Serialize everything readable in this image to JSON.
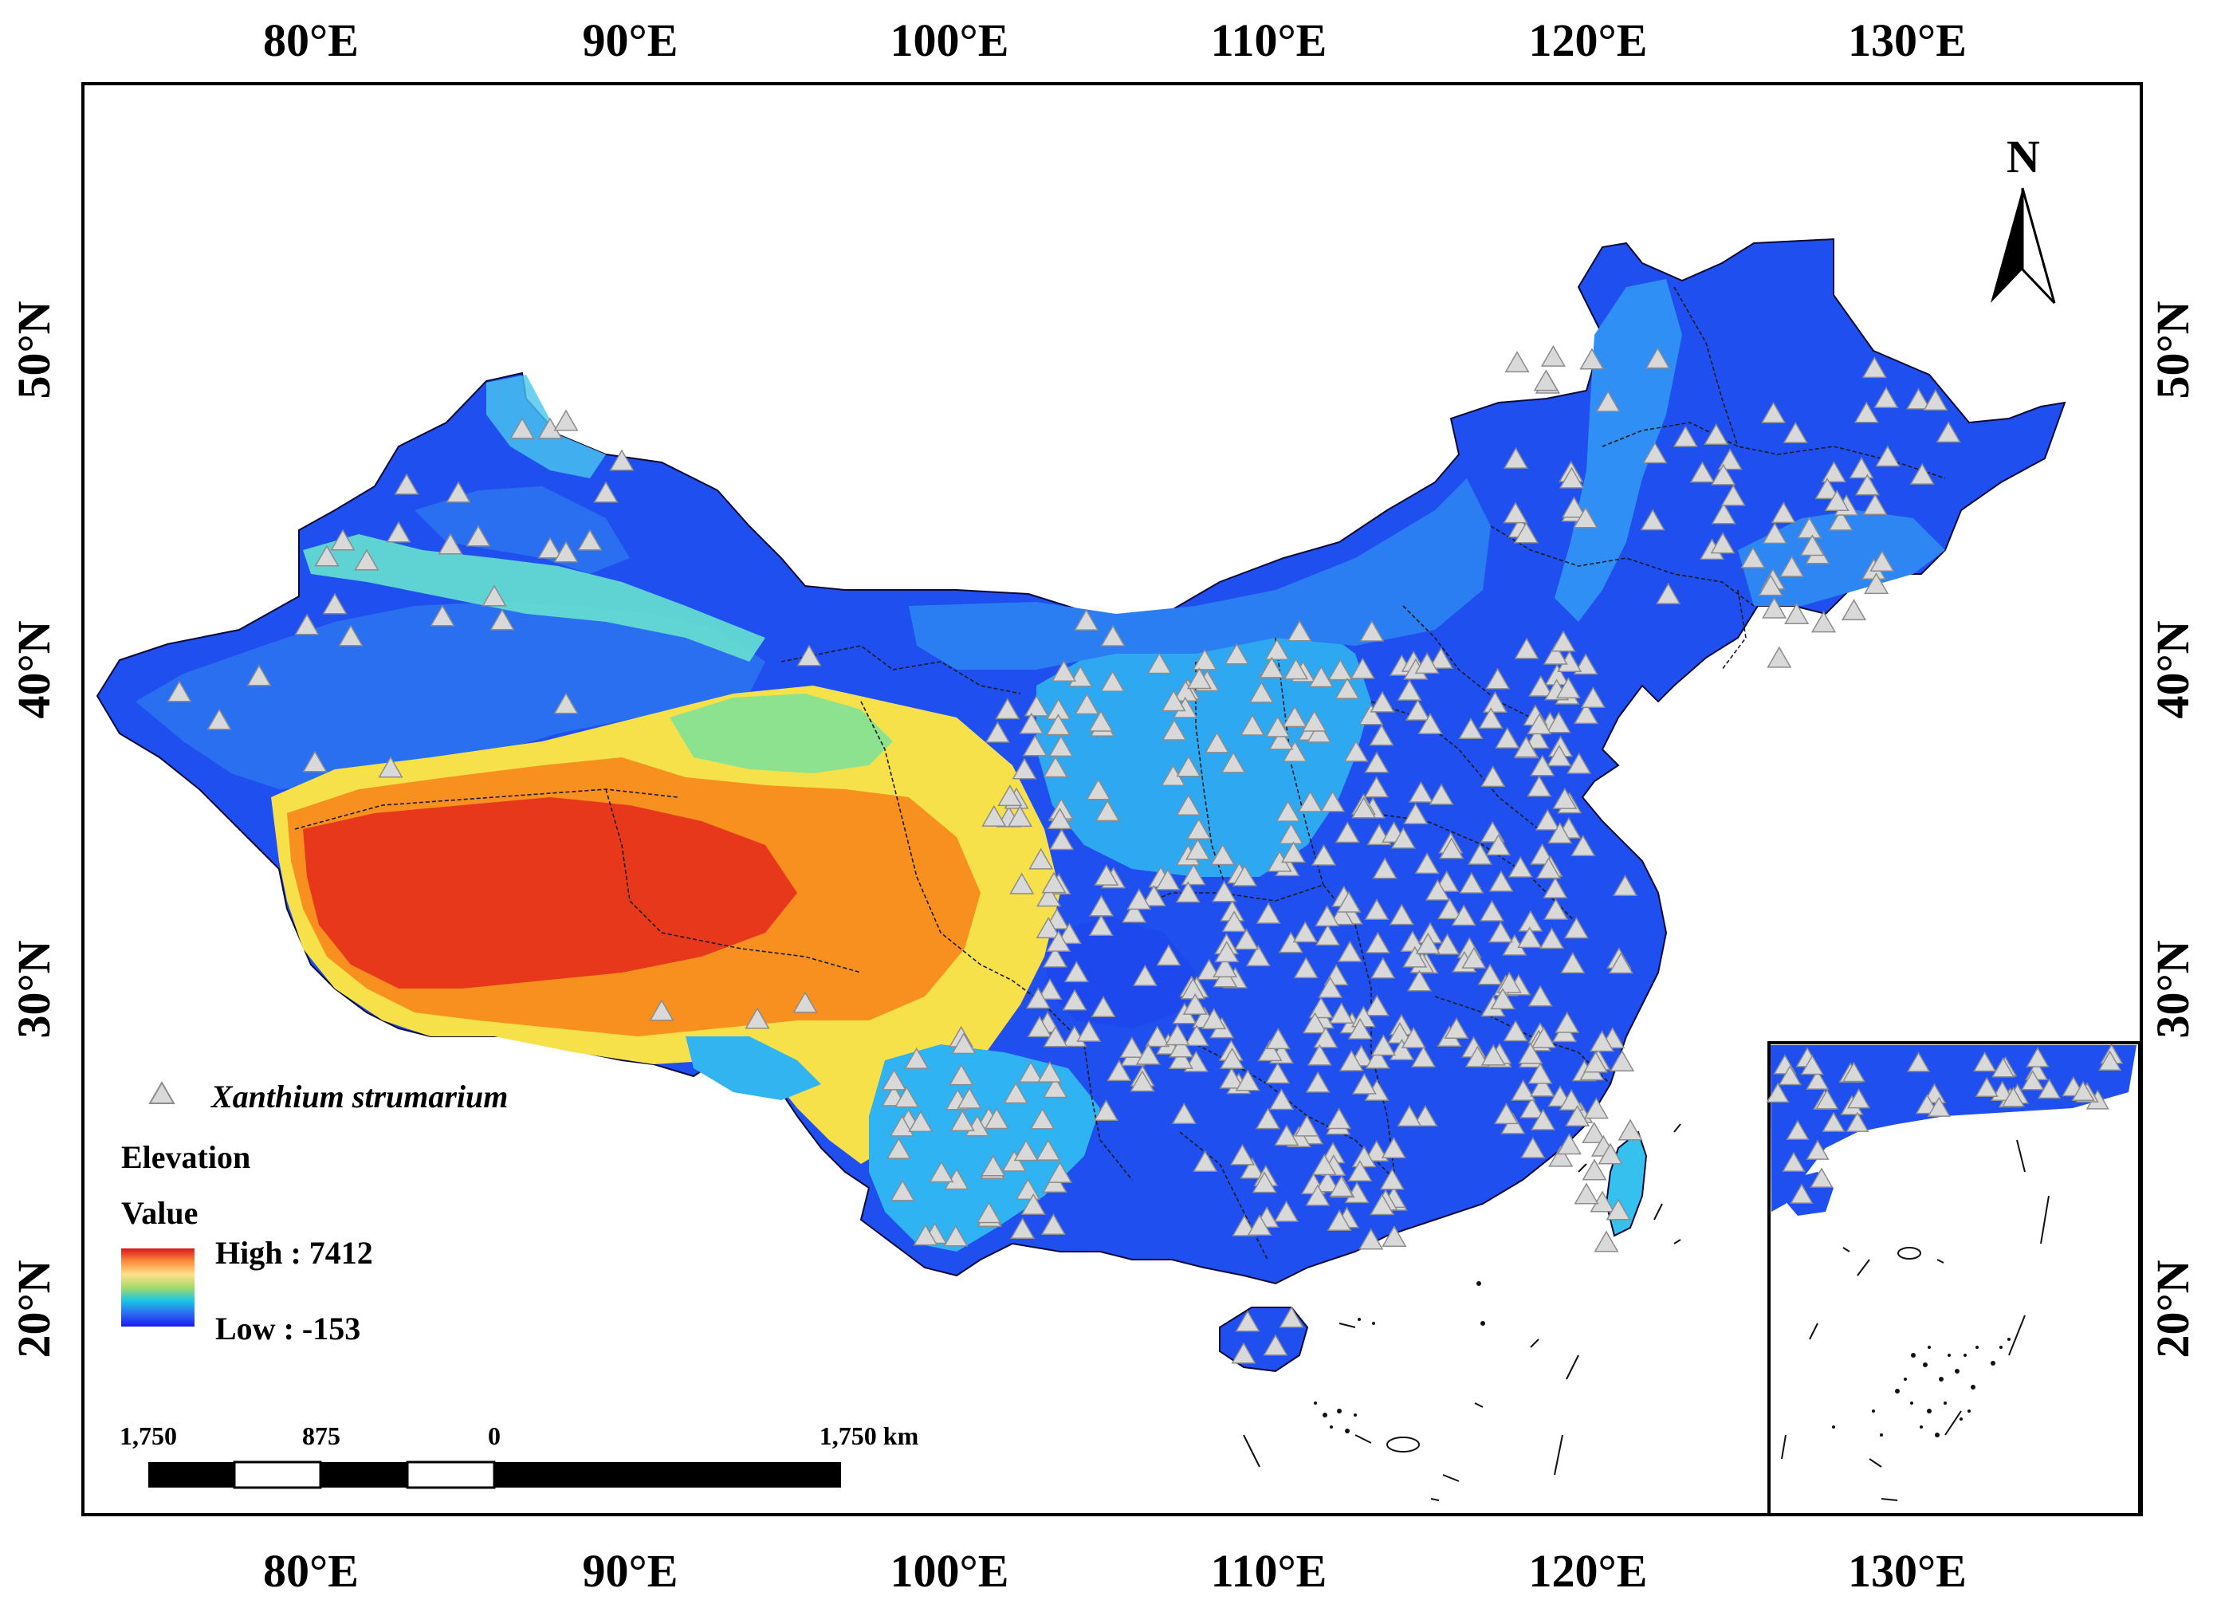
{
  "map": {
    "lon_ticks": [
      {
        "value": 80,
        "label": "80°E"
      },
      {
        "value": 90,
        "label": "90°E"
      },
      {
        "value": 100,
        "label": "100°E"
      },
      {
        "value": 110,
        "label": "110°E"
      },
      {
        "value": 120,
        "label": "120°E"
      },
      {
        "value": 130,
        "label": "130°E"
      }
    ],
    "lat_ticks": [
      {
        "value": 50,
        "label": "50°N"
      },
      {
        "value": 40,
        "label": "40°N"
      },
      {
        "value": 30,
        "label": "30°N"
      },
      {
        "value": 20,
        "label": "20°N"
      }
    ],
    "north_label": "N",
    "legend": {
      "species_label": "Xanthium strumarium",
      "elevation_title": "Elevation",
      "value_title": "Value",
      "high_label": "High : 7412",
      "low_label": "Low : -153",
      "high_value": 7412,
      "low_value": -153,
      "ramp_colors": [
        "#d7191c",
        "#fd8d3c",
        "#fee08b",
        "#a6d96a",
        "#1ac6e6",
        "#2b6cf0",
        "#1a1aef"
      ]
    },
    "scale_bar": {
      "labels": [
        "1,750",
        "875",
        "0",
        "1,750 km"
      ]
    },
    "colors": {
      "marker_fill": "#d9d9d9",
      "marker_stroke": "#8c8c8c",
      "low_elev": "#1a3cf0",
      "mid_elev": "#27a9f2",
      "plateau": "#f36a1c"
    }
  }
}
